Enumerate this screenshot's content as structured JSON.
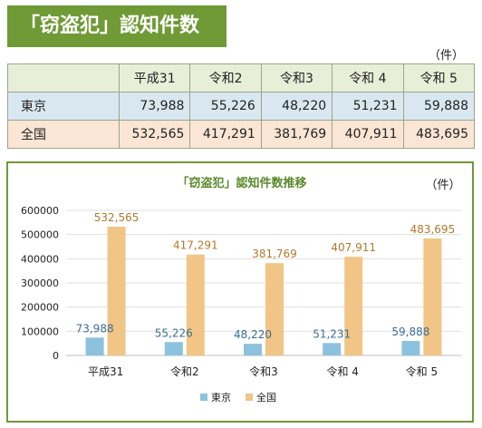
{
  "page_title": "「窃盗犯」認知件数",
  "unit": "（件）",
  "table": {
    "headers": [
      "平成31",
      "令和2",
      "令和3",
      "令和 4",
      "令和 5"
    ],
    "rows": [
      {
        "label": "東京",
        "values": [
          "73,988",
          "55,226",
          "48,220",
          "51,231",
          "59,888"
        ]
      },
      {
        "label": "全国",
        "values": [
          "532,565",
          "417,291",
          "381,769",
          "407,911",
          "483,695"
        ]
      }
    ]
  },
  "chart_data": {
    "type": "bar",
    "title": "「窃盗犯」認知件数推移",
    "unit": "（件）",
    "categories": [
      "平成31",
      "令和2",
      "令和3",
      "令和 4",
      "令和 5"
    ],
    "series": [
      {
        "name": "東京",
        "values": [
          73988,
          55226,
          48220,
          51231,
          59888
        ],
        "labels": [
          "73,988",
          "55,226",
          "48,220",
          "51,231",
          "59,888"
        ]
      },
      {
        "name": "全国",
        "values": [
          532565,
          417291,
          381769,
          407911,
          483695
        ],
        "labels": [
          "532,565",
          "417,291",
          "381,769",
          "407,911",
          "483,695"
        ]
      }
    ],
    "ylim": [
      0,
      600000
    ],
    "yticks": [
      "0",
      "100000",
      "200000",
      "300000",
      "400000",
      "500000",
      "600000"
    ],
    "grid": true,
    "legend": "bottom",
    "colors": {
      "東京": "#8cc2dd",
      "全国": "#f0c585",
      "label_tokyo": "#3a6e96",
      "label_national": "#b07a2a"
    }
  }
}
